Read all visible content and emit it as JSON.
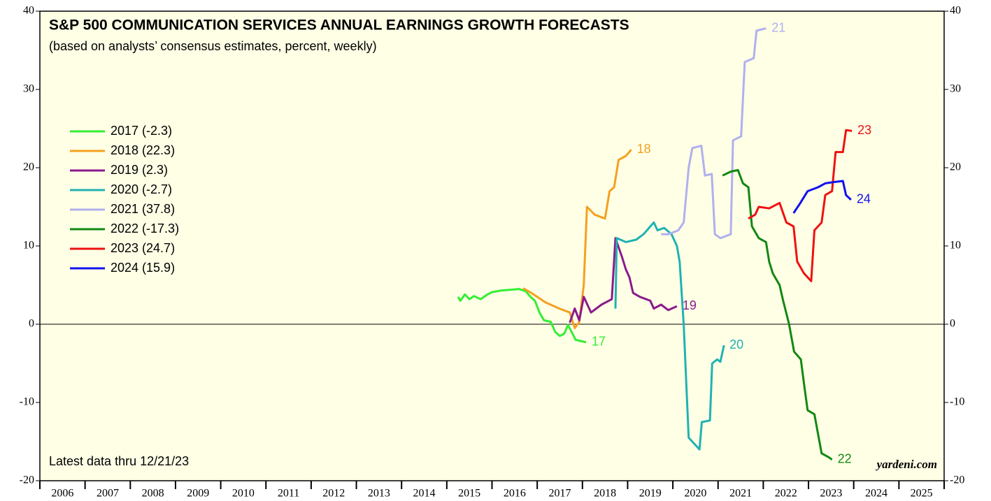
{
  "chart_data": {
    "type": "line",
    "title": "S&P 500 COMMUNICATION SERVICES ANNUAL EARNINGS GROWTH FORECASTS",
    "subtitle": "(based on analysts’ consensus estimates, percent, weekly)",
    "note": "Latest data thru  12/21/23",
    "source": "yardeni.com",
    "xlim": [
      2006,
      2026
    ],
    "xticks": [
      {
        "value": 2006.5,
        "label": "2006"
      },
      {
        "value": 2007.5,
        "label": "2007"
      },
      {
        "value": 2008.5,
        "label": "2008"
      },
      {
        "value": 2009.5,
        "label": "2009"
      },
      {
        "value": 2010.5,
        "label": "2010"
      },
      {
        "value": 2011.5,
        "label": "2011"
      },
      {
        "value": 2012.5,
        "label": "2012"
      },
      {
        "value": 2013.5,
        "label": "2013"
      },
      {
        "value": 2014.5,
        "label": "2014"
      },
      {
        "value": 2015.5,
        "label": "2015"
      },
      {
        "value": 2016.5,
        "label": "2016"
      },
      {
        "value": 2017.5,
        "label": "2017"
      },
      {
        "value": 2018.5,
        "label": "2018"
      },
      {
        "value": 2019.5,
        "label": "2019"
      },
      {
        "value": 2020.5,
        "label": "2020"
      },
      {
        "value": 2021.5,
        "label": "2021"
      },
      {
        "value": 2022.5,
        "label": "2022"
      },
      {
        "value": 2023.5,
        "label": "2023"
      },
      {
        "value": 2024.5,
        "label": "2024"
      },
      {
        "value": 2025.5,
        "label": "2025"
      }
    ],
    "ylim": [
      -20,
      40
    ],
    "yticks": [
      -20,
      -10,
      0,
      10,
      20,
      30,
      40
    ],
    "legend": "upper left",
    "series": [
      {
        "name": "2017 (-2.3)",
        "end_label": "17",
        "color": "#33ee33",
        "x": [
          2015.25,
          2015.3,
          2015.4,
          2015.5,
          2015.6,
          2015.75,
          2015.9,
          2016.0,
          2016.2,
          2016.4,
          2016.6,
          2016.75,
          2016.85,
          2016.95,
          2017.05,
          2017.15,
          2017.3,
          2017.4,
          2017.5,
          2017.6,
          2017.68,
          2017.78,
          2017.85,
          2018.0,
          2018.08
        ],
        "values": [
          3.5,
          3.0,
          3.8,
          3.2,
          3.6,
          3.2,
          3.8,
          4.1,
          4.3,
          4.4,
          4.5,
          4.2,
          3.5,
          3.0,
          1.5,
          0.5,
          0.3,
          -1.0,
          -1.5,
          -1.2,
          -0.1,
          -1.2,
          -2.0,
          -2.2,
          -2.3
        ]
      },
      {
        "name": "2018 (22.3)",
        "end_label": "18",
        "color": "#f5a020",
        "x": [
          2016.69,
          2016.87,
          2017.18,
          2017.49,
          2017.72,
          2017.83,
          2017.93,
          2018.03,
          2018.1,
          2018.27,
          2018.5,
          2018.6,
          2018.7,
          2018.8,
          2018.96,
          2019.08
        ],
        "values": [
          4.6,
          4.0,
          2.8,
          2.0,
          1.5,
          -0.5,
          0.3,
          5,
          15,
          14,
          13.5,
          17,
          17.5,
          21,
          21.5,
          22.3
        ]
      },
      {
        "name": "2019 (2.3)",
        "end_label": "19",
        "color": "#8b1a8b",
        "x": [
          2017.72,
          2017.83,
          2017.93,
          2018.03,
          2018.19,
          2018.42,
          2018.65,
          2018.73,
          2018.88,
          2018.96,
          2019.04,
          2019.12,
          2019.27,
          2019.5,
          2019.58,
          2019.74,
          2019.9,
          2020.09
        ],
        "values": [
          0.2,
          2,
          0.5,
          3.5,
          1.5,
          2.5,
          3.2,
          11,
          8.5,
          7,
          6,
          4,
          3.5,
          3,
          2,
          2.5,
          1.8,
          2.3
        ]
      },
      {
        "name": "2020 (-2.7)",
        "end_label": "20",
        "color": "#20b2b2",
        "x": [
          2018.73,
          2018.76,
          2018.96,
          2019.19,
          2019.35,
          2019.58,
          2019.66,
          2019.81,
          2019.97,
          2020.09,
          2020.15,
          2020.24,
          2020.35,
          2020.43,
          2020.59,
          2020.64,
          2020.82,
          2020.87,
          2020.98,
          2021.05,
          2021.13
        ],
        "values": [
          2,
          11,
          10.5,
          10.8,
          11.5,
          13,
          12,
          12.3,
          11.5,
          10,
          8,
          0,
          -14.5,
          -15,
          -16,
          -12.5,
          -12.3,
          -5,
          -4.5,
          -4.8,
          -2.7
        ]
      },
      {
        "name": "2021 (37.8)",
        "end_label": "21",
        "color": "#b0b0ee",
        "x": [
          2019.74,
          2019.9,
          2020.12,
          2020.24,
          2020.35,
          2020.43,
          2020.63,
          2020.71,
          2020.86,
          2020.93,
          2021.05,
          2021.28,
          2021.33,
          2021.51,
          2021.59,
          2021.79,
          2021.85,
          2022.06
        ],
        "values": [
          11.5,
          11.5,
          12,
          13,
          20,
          22.5,
          22.8,
          19,
          19.2,
          11.5,
          11,
          11.5,
          23.5,
          24,
          33.5,
          34,
          37.5,
          37.8
        ]
      },
      {
        "name": "2022 (-17.3)",
        "end_label": "22",
        "color": "#118811",
        "x": [
          2021.1,
          2021.28,
          2021.44,
          2021.55,
          2021.67,
          2021.75,
          2021.9,
          2022.06,
          2022.13,
          2022.21,
          2022.36,
          2022.44,
          2022.57,
          2022.68,
          2022.83,
          2022.91,
          2022.98,
          2023.13,
          2023.29,
          2023.45,
          2023.52
        ],
        "values": [
          19,
          19.5,
          19.7,
          18,
          17.5,
          12.5,
          11,
          10.5,
          8,
          6.5,
          5,
          3,
          0,
          -3.5,
          -4.5,
          -8,
          -11,
          -11.5,
          -16.5,
          -17,
          -17.3
        ]
      },
      {
        "name": "2023 (24.7)",
        "end_label": "23",
        "color": "#ee1111",
        "x": [
          2021.67,
          2021.82,
          2021.9,
          2022.13,
          2022.36,
          2022.51,
          2022.67,
          2022.75,
          2022.9,
          2023.06,
          2023.13,
          2023.29,
          2023.37,
          2023.52,
          2023.6,
          2023.76,
          2023.83,
          2023.96
        ],
        "values": [
          13.5,
          14,
          15,
          14.8,
          15.5,
          13,
          12.5,
          8,
          6.5,
          5.5,
          12,
          13,
          16.5,
          17,
          22,
          22,
          24.8,
          24.7
        ]
      },
      {
        "name": "2024 (15.9)",
        "end_label": "24",
        "color": "#1111ee",
        "x": [
          2022.67,
          2022.82,
          2022.98,
          2023.21,
          2023.37,
          2023.6,
          2023.76,
          2023.83,
          2023.94
        ],
        "values": [
          14.2,
          15.5,
          17,
          17.5,
          18,
          18.2,
          18.3,
          16.5,
          15.9
        ]
      }
    ]
  }
}
